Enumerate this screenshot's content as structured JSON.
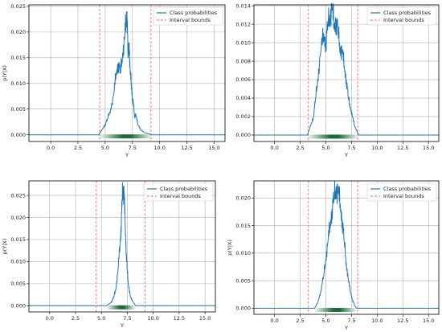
{
  "chart_data": [
    {
      "type": "line",
      "xlabel": "Y",
      "ylabel": "p(Y|X)",
      "xlim": [
        -2,
        16
      ],
      "ylim": [
        -0.0013,
        0.0253
      ],
      "xticks": [
        0.0,
        2.5,
        5.0,
        7.5,
        10.0,
        12.5,
        15.0
      ],
      "xtick_labels": [
        "0.0",
        "2.5",
        "5.0",
        "7.5",
        "10.0",
        "12.5",
        "15.0"
      ],
      "yticks": [
        0.0,
        0.005,
        0.01,
        0.015,
        0.02,
        0.025
      ],
      "ytick_labels": [
        "0.000",
        "0.005",
        "0.010",
        "0.015",
        "0.020",
        "0.025"
      ],
      "grid": true,
      "legend_position": "top-right",
      "interval_bounds": [
        4.5,
        9.2
      ],
      "series": [
        {
          "name": "Class probabilities",
          "x": [
            -2.0,
            4.4,
            4.7,
            5.0,
            5.2,
            5.5,
            5.8,
            6.0,
            6.2,
            6.4,
            6.6,
            6.8,
            6.9,
            7.0,
            7.1,
            7.2,
            7.3,
            7.4,
            7.5,
            7.6,
            7.7,
            7.8,
            8.0,
            8.3,
            8.6,
            9.0,
            9.3,
            16.0
          ],
          "y": [
            0.0,
            0.0,
            0.001,
            0.002,
            0.003,
            0.005,
            0.008,
            0.012,
            0.014,
            0.012,
            0.016,
            0.019,
            0.022,
            0.024,
            0.015,
            0.018,
            0.012,
            0.01,
            0.007,
            0.006,
            0.0035,
            0.004,
            0.002,
            0.001,
            0.0004,
            0.0002,
            0.0,
            0.0
          ]
        },
        {
          "name": "Interval bounds"
        }
      ]
    },
    {
      "type": "line",
      "xlabel": "Y",
      "ylabel": "",
      "xlim": [
        -2,
        16
      ],
      "ylim": [
        -0.0007,
        0.0141
      ],
      "xticks": [
        0.0,
        2.5,
        5.0,
        7.5,
        10.0,
        12.5,
        15.0
      ],
      "xtick_labels": [
        "0.0",
        "2.5",
        "5.0",
        "7.5",
        "10.0",
        "12.5",
        "15.0"
      ],
      "yticks": [
        0.0,
        0.002,
        0.004,
        0.006,
        0.008,
        0.01,
        0.012,
        0.014
      ],
      "ytick_labels": [
        "0.000",
        "0.002",
        "0.004",
        "0.006",
        "0.008",
        "0.010",
        "0.012",
        "0.014"
      ],
      "grid": true,
      "legend_position": "top-right",
      "interval_bounds": [
        3.3,
        8.1
      ],
      "series": [
        {
          "name": "Class probabilities",
          "x": [
            -2.0,
            3.2,
            3.5,
            3.8,
            4.0,
            4.2,
            4.5,
            4.8,
            5.0,
            5.2,
            5.4,
            5.6,
            5.8,
            6.0,
            6.2,
            6.4,
            6.6,
            6.8,
            7.0,
            7.2,
            7.4,
            7.6,
            7.8,
            8.2,
            16.0
          ],
          "y": [
            0.0,
            0.0,
            0.001,
            0.002,
            0.004,
            0.006,
            0.009,
            0.011,
            0.01,
            0.012,
            0.013,
            0.0137,
            0.012,
            0.0125,
            0.011,
            0.0095,
            0.009,
            0.0075,
            0.006,
            0.004,
            0.003,
            0.002,
            0.001,
            0.0,
            0.0
          ]
        },
        {
          "name": "Interval bounds"
        }
      ]
    },
    {
      "type": "line",
      "xlabel": "Y",
      "ylabel": "p(Y|X)",
      "xlim": [
        -2,
        16
      ],
      "ylim": [
        -0.0014,
        0.0283
      ],
      "xticks": [
        0.0,
        2.5,
        5.0,
        7.5,
        10.0,
        12.5,
        15.0
      ],
      "xtick_labels": [
        "0.0",
        "2.5",
        "5.0",
        "7.5",
        "10.0",
        "12.5",
        "15.0"
      ],
      "yticks": [
        0.0,
        0.005,
        0.01,
        0.015,
        0.02,
        0.025
      ],
      "ytick_labels": [
        "0.000",
        "0.005",
        "0.010",
        "0.015",
        "0.020",
        "0.025"
      ],
      "grid": true,
      "legend_position": "top-right",
      "interval_bounds": [
        4.5,
        9.2
      ],
      "series": [
        {
          "name": "Class probabilities",
          "x": [
            -2.0,
            5.5,
            5.8,
            6.0,
            6.2,
            6.4,
            6.6,
            6.8,
            6.9,
            7.0,
            7.1,
            7.2,
            7.3,
            7.4,
            7.5,
            7.6,
            7.8,
            8.0,
            8.3,
            16.0
          ],
          "y": [
            0.0,
            0.0,
            0.0005,
            0.001,
            0.002,
            0.004,
            0.008,
            0.014,
            0.018,
            0.024,
            0.027,
            0.025,
            0.018,
            0.012,
            0.008,
            0.005,
            0.002,
            0.001,
            0.0,
            0.0
          ]
        },
        {
          "name": "Interval bounds"
        }
      ]
    },
    {
      "type": "line",
      "xlabel": "Y",
      "ylabel": "p(Y|X)",
      "xlim": [
        -2,
        16
      ],
      "ylim": [
        -0.0011,
        0.0231
      ],
      "xticks": [
        0.0,
        2.5,
        5.0,
        7.5,
        10.0,
        12.5,
        15.0
      ],
      "xtick_labels": [
        "0.0",
        "2.5",
        "5.0",
        "7.5",
        "10.0",
        "12.5",
        "15.0"
      ],
      "yticks": [
        0.0,
        0.005,
        0.01,
        0.015,
        0.02
      ],
      "ytick_labels": [
        "0.000",
        "0.005",
        "0.010",
        "0.015",
        "0.020"
      ],
      "grid": true,
      "legend_position": "top-right",
      "interval_bounds": [
        3.3,
        8.1
      ],
      "series": [
        {
          "name": "Class probabilities",
          "x": [
            -2.0,
            3.9,
            4.2,
            4.5,
            4.8,
            5.0,
            5.2,
            5.4,
            5.6,
            5.8,
            6.0,
            6.2,
            6.4,
            6.6,
            6.8,
            7.0,
            7.2,
            7.4,
            7.6,
            7.8,
            8.0,
            16.0
          ],
          "y": [
            0.0,
            0.0,
            0.001,
            0.003,
            0.006,
            0.009,
            0.012,
            0.015,
            0.018,
            0.02,
            0.022,
            0.021,
            0.019,
            0.016,
            0.012,
            0.008,
            0.005,
            0.003,
            0.0015,
            0.0005,
            0.0,
            0.0
          ]
        },
        {
          "name": "Interval bounds"
        }
      ]
    }
  ],
  "colors": {
    "line": "#1f77b4",
    "bounds": "#ff6b6b",
    "grid": "#b0b0b0",
    "band_edge": "#f4fbf4",
    "band_center": "#1a6b38"
  }
}
